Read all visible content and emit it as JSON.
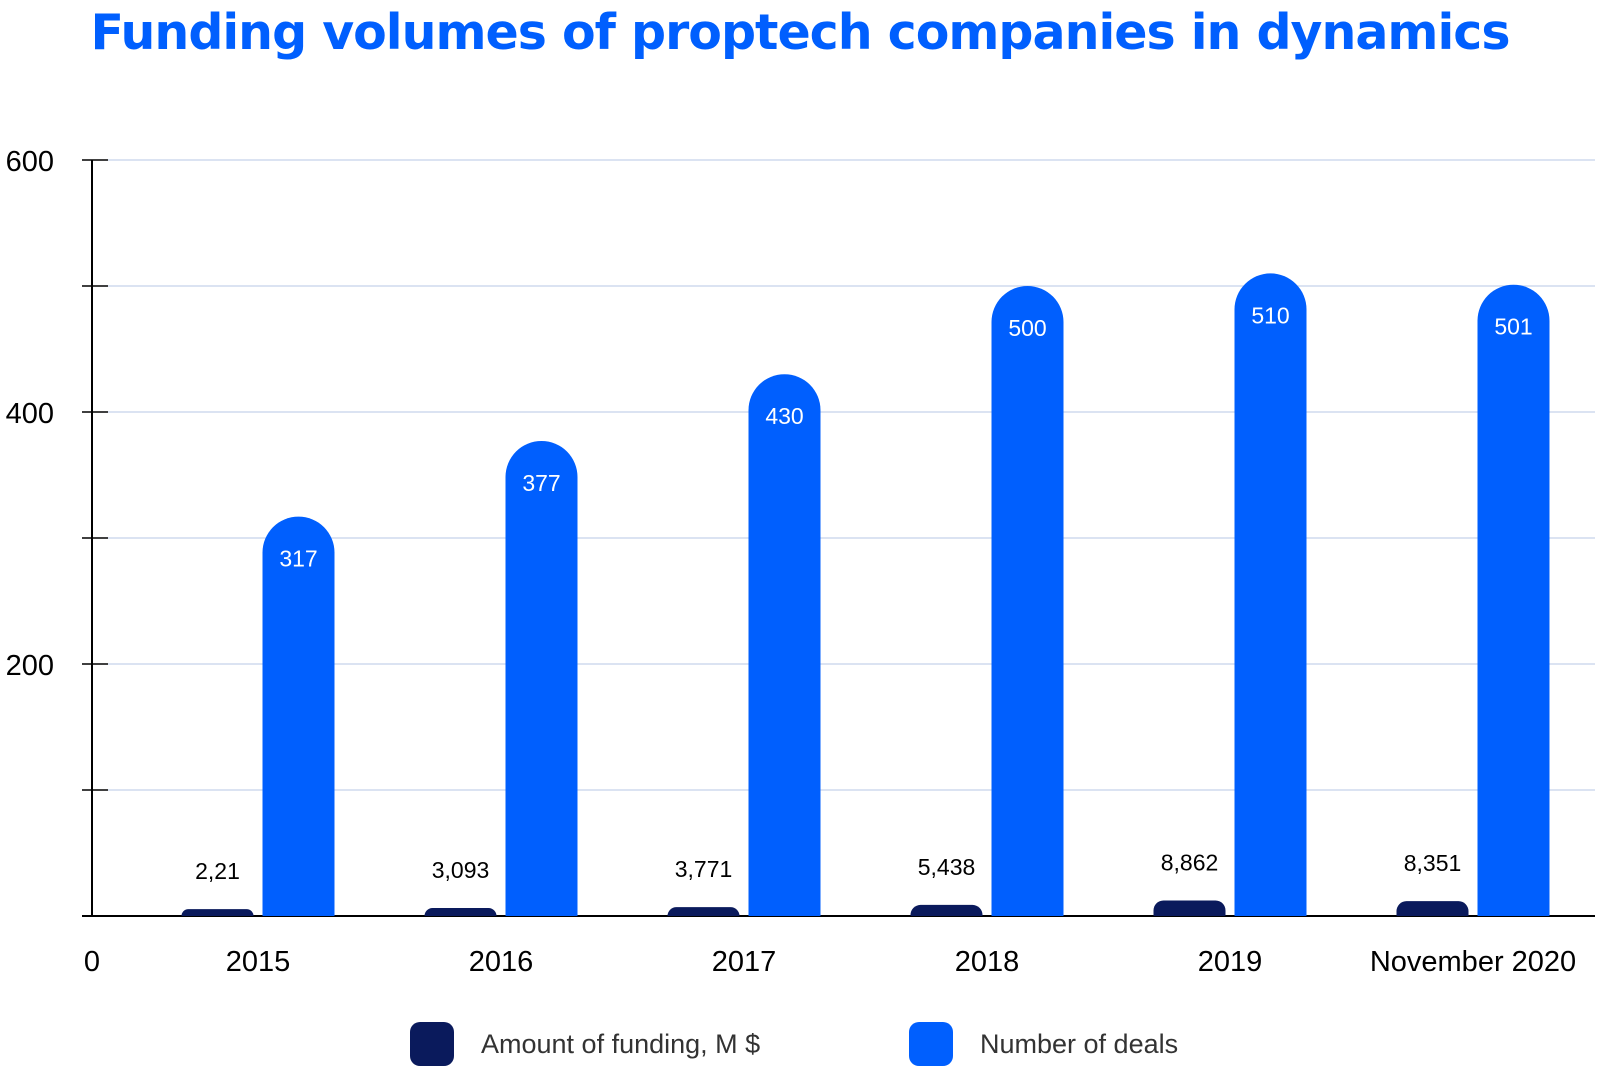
{
  "chart_data": {
    "type": "bar",
    "title": "Funding volumes of proptech companies in dynamics",
    "categories": [
      "2015",
      "2016",
      "2017",
      "2018",
      "2019",
      "November 2020"
    ],
    "series": [
      {
        "name": "Amount of funding, M $",
        "values": [
          2.21,
          3.093,
          3.771,
          5.438,
          8.862,
          8.351
        ],
        "labels": [
          "2,21",
          "3,093",
          "3,771",
          "5,438",
          "8,862",
          "8,351"
        ],
        "color": "#0a1a5c"
      },
      {
        "name": "Number of deals",
        "values": [
          317,
          377,
          430,
          500,
          510,
          501
        ],
        "labels": [
          "317",
          "377",
          "430",
          "500",
          "510",
          "501"
        ],
        "color": "#005ffe"
      }
    ],
    "y_ticks": [
      "0",
      "200",
      "400",
      "600"
    ],
    "ylim": [
      0,
      600
    ],
    "grid": true,
    "legend": "bottom-center"
  }
}
